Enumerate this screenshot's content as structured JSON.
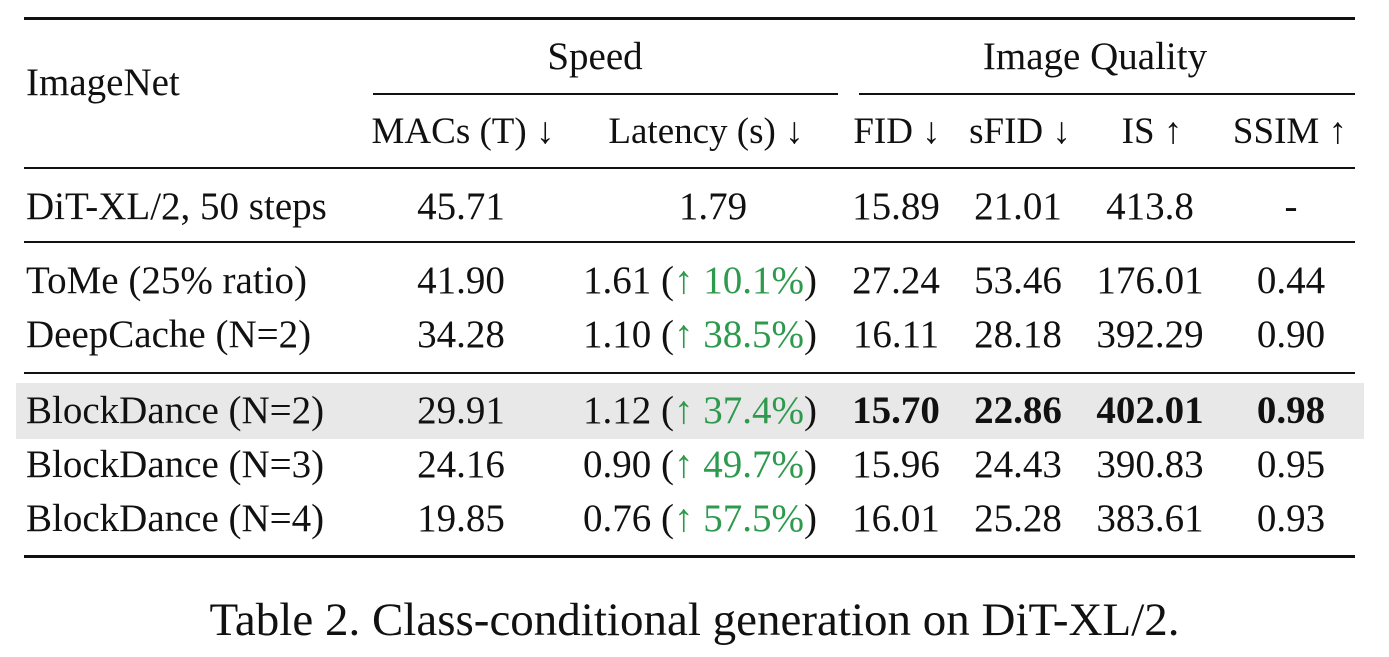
{
  "table": {
    "dataset_label": "ImageNet",
    "groups": {
      "speed": "Speed",
      "quality": "Image Quality"
    },
    "columns": {
      "macs": "MACs (T) ↓",
      "latency": "Latency (s) ↓",
      "fid": "FID ↓",
      "sfid": "sFID ↓",
      "is": "IS ↑",
      "ssim": "SSIM ↑"
    },
    "rows": [
      {
        "method": "DiT-XL/2, 50 steps",
        "macs": "45.71",
        "latency": "1.79",
        "speedup": "",
        "fid": "15.89",
        "sfid": "21.01",
        "is": "413.8",
        "ssim": "-"
      },
      {
        "method": "ToMe (25% ratio)",
        "macs": "41.90",
        "latency": "1.61 (",
        "speedup": "↑ 10.1%",
        "latency_close": ")",
        "fid": "27.24",
        "sfid": "53.46",
        "is": "176.01",
        "ssim": "0.44"
      },
      {
        "method": "DeepCache (N=2)",
        "macs": "34.28",
        "latency": "1.10 (",
        "speedup": "↑ 38.5%",
        "latency_close": ")",
        "fid": "16.11",
        "sfid": "28.18",
        "is": "392.29",
        "ssim": "0.90"
      },
      {
        "method": "BlockDance (N=2)",
        "macs": "29.91",
        "latency": "1.12 (",
        "speedup": "↑ 37.4%",
        "latency_close": ")",
        "fid": "15.70",
        "sfid": "22.86",
        "is": "402.01",
        "ssim": "0.98",
        "highlight": true
      },
      {
        "method": "BlockDance (N=3)",
        "macs": "24.16",
        "latency": "0.90 (",
        "speedup": "↑ 49.7%",
        "latency_close": ")",
        "fid": "15.96",
        "sfid": "24.43",
        "is": "390.83",
        "ssim": "0.95"
      },
      {
        "method": "BlockDance (N=4)",
        "macs": "19.85",
        "latency": "0.76 (",
        "speedup": "↑ 57.5%",
        "latency_close": ")",
        "fid": "16.01",
        "sfid": "25.28",
        "is": "383.61",
        "ssim": "0.93"
      }
    ],
    "colors": {
      "speedup_text": "#2e9a4e",
      "highlight_row": "#e8e8e8"
    }
  },
  "caption": "Table 2. Class-conditional generation on DiT-XL/2."
}
